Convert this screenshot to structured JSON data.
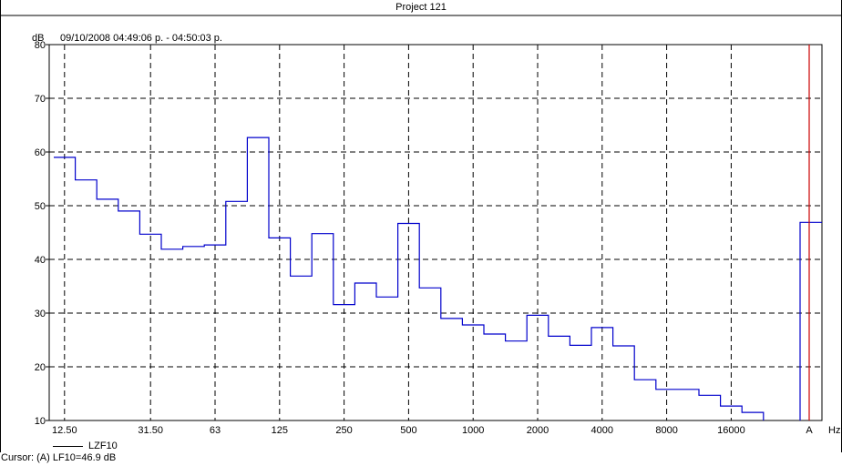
{
  "title": "Project 121",
  "subtitle": "09/10/2008 04:49:06 p. - 04:50:03 p.",
  "cursor_readout": "Cursor: (A)  LF10=46.9 dB",
  "legend_label": "LZF10",
  "colors": {
    "series": "#0000cc",
    "cursor": "#cc0000",
    "grid": "#000000",
    "frame": "#000000"
  },
  "chart_data": {
    "type": "line",
    "step": true,
    "ylabel": "dB",
    "xunit": "Hz",
    "ylim": [
      10,
      80
    ],
    "yticks": [
      10,
      20,
      30,
      40,
      50,
      60,
      70,
      80
    ],
    "grid": true,
    "xtick_labels": [
      "12.50",
      "31.50",
      "63",
      "125",
      "250",
      "500",
      "1000",
      "2000",
      "4000",
      "8000",
      "16000",
      "A"
    ],
    "series": [
      {
        "name": "LZF10",
        "bands": [
          "12.5",
          "16",
          "20",
          "25",
          "31.5",
          "40",
          "50",
          "63",
          "80",
          "100",
          "125",
          "160",
          "200",
          "250",
          "315",
          "400",
          "500",
          "630",
          "800",
          "1000",
          "1250",
          "1600",
          "2000",
          "2500",
          "3150",
          "4000",
          "5000",
          "6300",
          "8000",
          "10000",
          "12500",
          "16000",
          "20000"
        ],
        "values": [
          59.0,
          54.8,
          51.2,
          49.0,
          44.7,
          41.9,
          42.4,
          42.7,
          50.8,
          62.7,
          44.0,
          36.9,
          44.8,
          31.6,
          35.6,
          33.0,
          46.7,
          34.7,
          29.0,
          27.8,
          26.1,
          24.8,
          29.6,
          25.7,
          24.0,
          27.3,
          23.9,
          17.6,
          15.8,
          15.8,
          14.7,
          12.7,
          11.5
        ],
        "a_weighted": 46.9
      }
    ]
  }
}
